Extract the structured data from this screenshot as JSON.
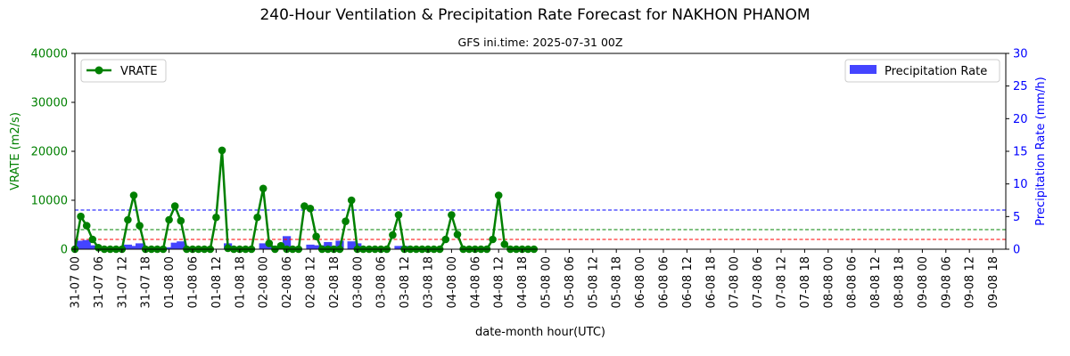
{
  "chart_data": {
    "type": "line+bar",
    "title": "240-Hour Ventilation & Precipitation Rate Forecast for NAKHON PHANOM",
    "subtitle": "GFS ini.time: 2025-07-31 00Z",
    "xlabel": "date-month hour(UTC)",
    "ylabel_left": "VRATE (m2/s)",
    "ylabel_right": "Precipitation Rate (mm/h)",
    "ylim_left": [
      0,
      40000
    ],
    "ylim_right": [
      0,
      30
    ],
    "yticks_left": [
      "0",
      "10000",
      "20000",
      "30000",
      "40000"
    ],
    "yticks_right": [
      "0",
      "5",
      "10",
      "15",
      "20",
      "25",
      "30"
    ],
    "x_tick_labels": [
      "31-07 00",
      "31-07 06",
      "31-07 12",
      "31-07 18",
      "01-08 00",
      "01-08 06",
      "01-08 12",
      "01-08 18",
      "02-08 00",
      "02-08 06",
      "02-08 12",
      "02-08 18",
      "03-08 00",
      "03-08 06",
      "03-08 12",
      "03-08 18",
      "04-08 00",
      "04-08 06",
      "04-08 12",
      "04-08 18",
      "05-08 00",
      "05-08 06",
      "05-08 12",
      "05-08 18",
      "06-08 00",
      "06-08 06",
      "06-08 12",
      "06-08 18",
      "07-08 00",
      "07-08 06",
      "07-08 12",
      "07-08 18",
      "08-08 00",
      "08-08 06",
      "08-08 12",
      "08-08 18",
      "09-08 00",
      "09-08 06",
      "09-08 12",
      "09-08 18"
    ],
    "legend_line": "VRATE",
    "legend_bar": "Precipitation Rate",
    "legend_line_placement": "top-left",
    "legend_bar_placement": "top-right",
    "x_step_hours": 3,
    "series": [
      {
        "name": "VRATE",
        "axis": "left",
        "color": "#008000",
        "values": [
          0,
          6700,
          4800,
          2000,
          300,
          0,
          0,
          0,
          0,
          6000,
          11000,
          4800,
          0,
          0,
          0,
          0,
          6000,
          8800,
          5800,
          0,
          0,
          0,
          0,
          0,
          6500,
          20200,
          200,
          0,
          0,
          0,
          0,
          6500,
          12400,
          1200,
          0,
          700,
          0,
          0,
          0,
          8800,
          8300,
          2600,
          0,
          0,
          0,
          0,
          5700,
          10000,
          0,
          0,
          0,
          0,
          0,
          0,
          2900,
          7000,
          0,
          0,
          0,
          0,
          0,
          0,
          0,
          2000,
          7000,
          3000,
          0,
          0,
          0,
          0,
          0,
          2000,
          11000,
          1000,
          0,
          0,
          0,
          0,
          0
        ]
      },
      {
        "name": "Precipitation Rate",
        "axis": "right",
        "color": "#0000ff",
        "type": "bar",
        "values": [
          0,
          1.3,
          1.4,
          0.6,
          0,
          0,
          0,
          0,
          0,
          0.7,
          0.5,
          0.9,
          0,
          0,
          0,
          0,
          0.3,
          1.0,
          1.2,
          0,
          0,
          0,
          0,
          0,
          0,
          0,
          0.9,
          0,
          0,
          0,
          0,
          0,
          0.9,
          0.6,
          0.2,
          0,
          2.0,
          0,
          0,
          0,
          0.7,
          0.6,
          0.6,
          1.1,
          0.3,
          1.3,
          0,
          1.2,
          0.9,
          0.2,
          0,
          0,
          0,
          0,
          0,
          0.5,
          0.5,
          0,
          0,
          0,
          0,
          0,
          0,
          0,
          0,
          0,
          0,
          0,
          0,
          0,
          0,
          0,
          0,
          0,
          0,
          0,
          0,
          0,
          0
        ]
      }
    ],
    "reference_lines": [
      {
        "axis": "left",
        "value": 8000,
        "color": "#0000ff",
        "style": "dashed"
      },
      {
        "axis": "left",
        "value": 4000,
        "color": "#008000",
        "style": "dashed"
      },
      {
        "axis": "left",
        "value": 2000,
        "color": "#ff0000",
        "style": "dashed"
      }
    ]
  }
}
